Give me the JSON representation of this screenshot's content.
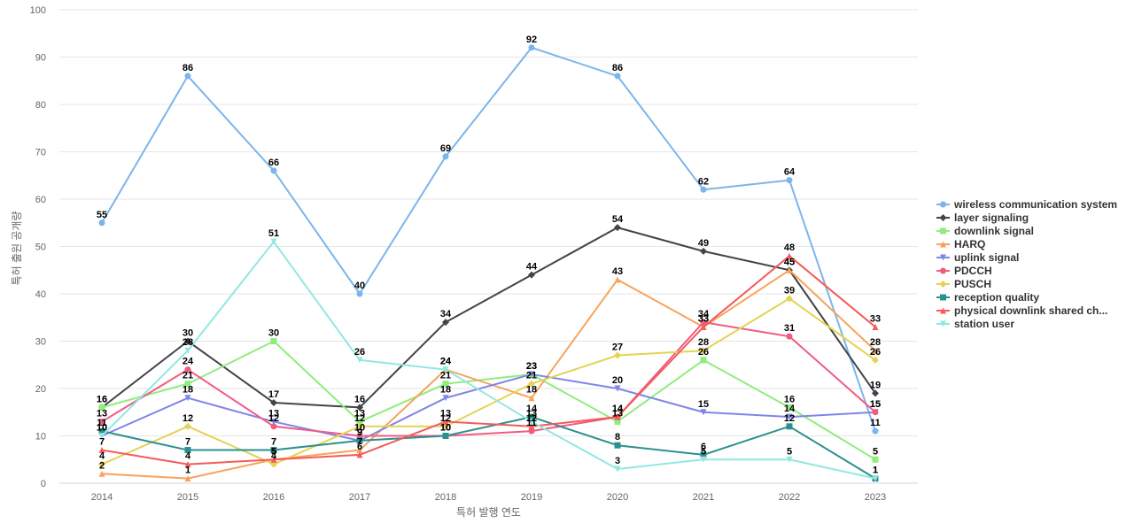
{
  "chart_data": {
    "type": "line",
    "title": "",
    "xlabel": "특허 발행 연도",
    "ylabel": "특허 출원 공개량",
    "ylim": [
      0,
      100
    ],
    "yticks": [
      0,
      10,
      20,
      30,
      40,
      50,
      60,
      70,
      80,
      90,
      100
    ],
    "grid": "horizontal",
    "legend_position": "right",
    "categories": [
      "2014",
      "2015",
      "2016",
      "2017",
      "2018",
      "2019",
      "2020",
      "2021",
      "2022",
      "2023"
    ],
    "series": [
      {
        "name": "wireless communication system",
        "color": "#7cb5ec",
        "marker": "circle",
        "values": [
          55,
          86,
          66,
          40,
          69,
          92,
          86,
          62,
          64,
          11
        ]
      },
      {
        "name": "layer signaling",
        "color": "#434348",
        "marker": "diamond",
        "values": [
          16,
          30,
          17,
          16,
          34,
          44,
          54,
          49,
          45,
          19
        ]
      },
      {
        "name": "downlink signal",
        "color": "#90ed7d",
        "marker": "square",
        "values": [
          16,
          21,
          30,
          13,
          21,
          23,
          13,
          26,
          16,
          5
        ]
      },
      {
        "name": "HARQ",
        "color": "#f7a35c",
        "marker": "triangle",
        "values": [
          2,
          1,
          5,
          7,
          24,
          18,
          43,
          33,
          45,
          28
        ]
      },
      {
        "name": "uplink signal",
        "color": "#8085e9",
        "marker": "triangle-down",
        "values": [
          10,
          18,
          13,
          9,
          18,
          23,
          20,
          15,
          14,
          15
        ]
      },
      {
        "name": "PDCCH",
        "color": "#f15c80",
        "marker": "circle",
        "values": [
          13,
          24,
          12,
          10,
          10,
          11,
          14,
          34,
          31,
          15
        ]
      },
      {
        "name": "PUSCH",
        "color": "#e4d354",
        "marker": "diamond",
        "values": [
          4,
          12,
          4,
          12,
          12,
          21,
          27,
          28,
          39,
          26
        ]
      },
      {
        "name": "reception quality",
        "color": "#2b908f",
        "marker": "square",
        "values": [
          11,
          7,
          7,
          9,
          10,
          14,
          8,
          6,
          12,
          1
        ]
      },
      {
        "name": "physical downlink shared ch...",
        "color": "#f45b5b",
        "marker": "triangle",
        "values": [
          7,
          4,
          5,
          6,
          13,
          12,
          14,
          33,
          48,
          33
        ]
      },
      {
        "name": "station user",
        "color": "#91e8e1",
        "marker": "triangle-down",
        "values": [
          10,
          28,
          51,
          26,
          24,
          13,
          3,
          5,
          5,
          1
        ]
      }
    ]
  }
}
